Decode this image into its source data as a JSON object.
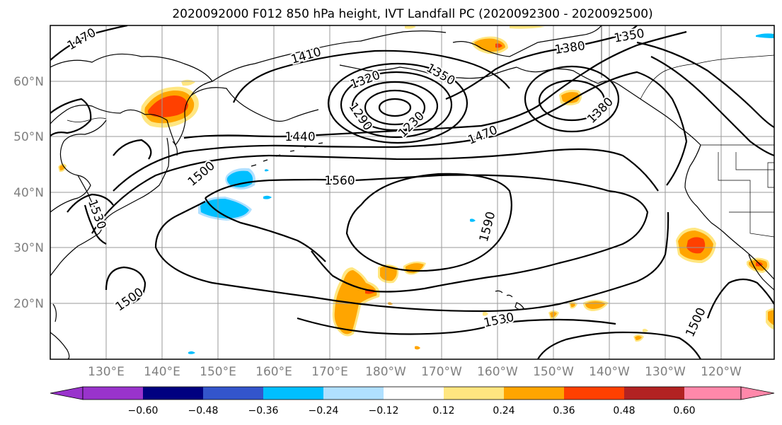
{
  "title": "2020092000 F012 850 hPa height, IVT Landfall PC (2020092300 - 2020092500)",
  "lon_ticks": [
    "130°E",
    "140°E",
    "150°E",
    "160°E",
    "170°E",
    "180°W",
    "170°W",
    "160°W",
    "150°W",
    "140°W",
    "130°W",
    "120°W"
  ],
  "lat_ticks": [
    "60°N",
    "50°N",
    "40°N",
    "30°N",
    "20°N"
  ],
  "contour_labels": [
    "1470",
    "1410",
    "1320",
    "1350",
    "1350",
    "1380",
    "1290",
    "1230",
    "1380",
    "1440",
    "1470",
    "1500",
    "1560",
    "1530",
    "1590",
    "1500",
    "1530",
    "1500"
  ],
  "colorbar": {
    "ticks": [
      "−0.60",
      "−0.48",
      "−0.36",
      "−0.24",
      "−0.12",
      "0.12",
      "0.24",
      "0.36",
      "0.48",
      "0.60"
    ],
    "colors": [
      "#9933cc",
      "#000080",
      "#3355cc",
      "#00bfff",
      "#b0e0ff",
      "#ffffff",
      "#ffe680",
      "#ffa500",
      "#ff4000",
      "#b22222",
      "#ff88aa"
    ]
  },
  "fill_colors": {
    "light_blue": "#b0e0ff",
    "sky_blue": "#00bfff",
    "light_yellow": "#ffe680",
    "orange": "#ffa500",
    "red_orange": "#ff4000"
  }
}
